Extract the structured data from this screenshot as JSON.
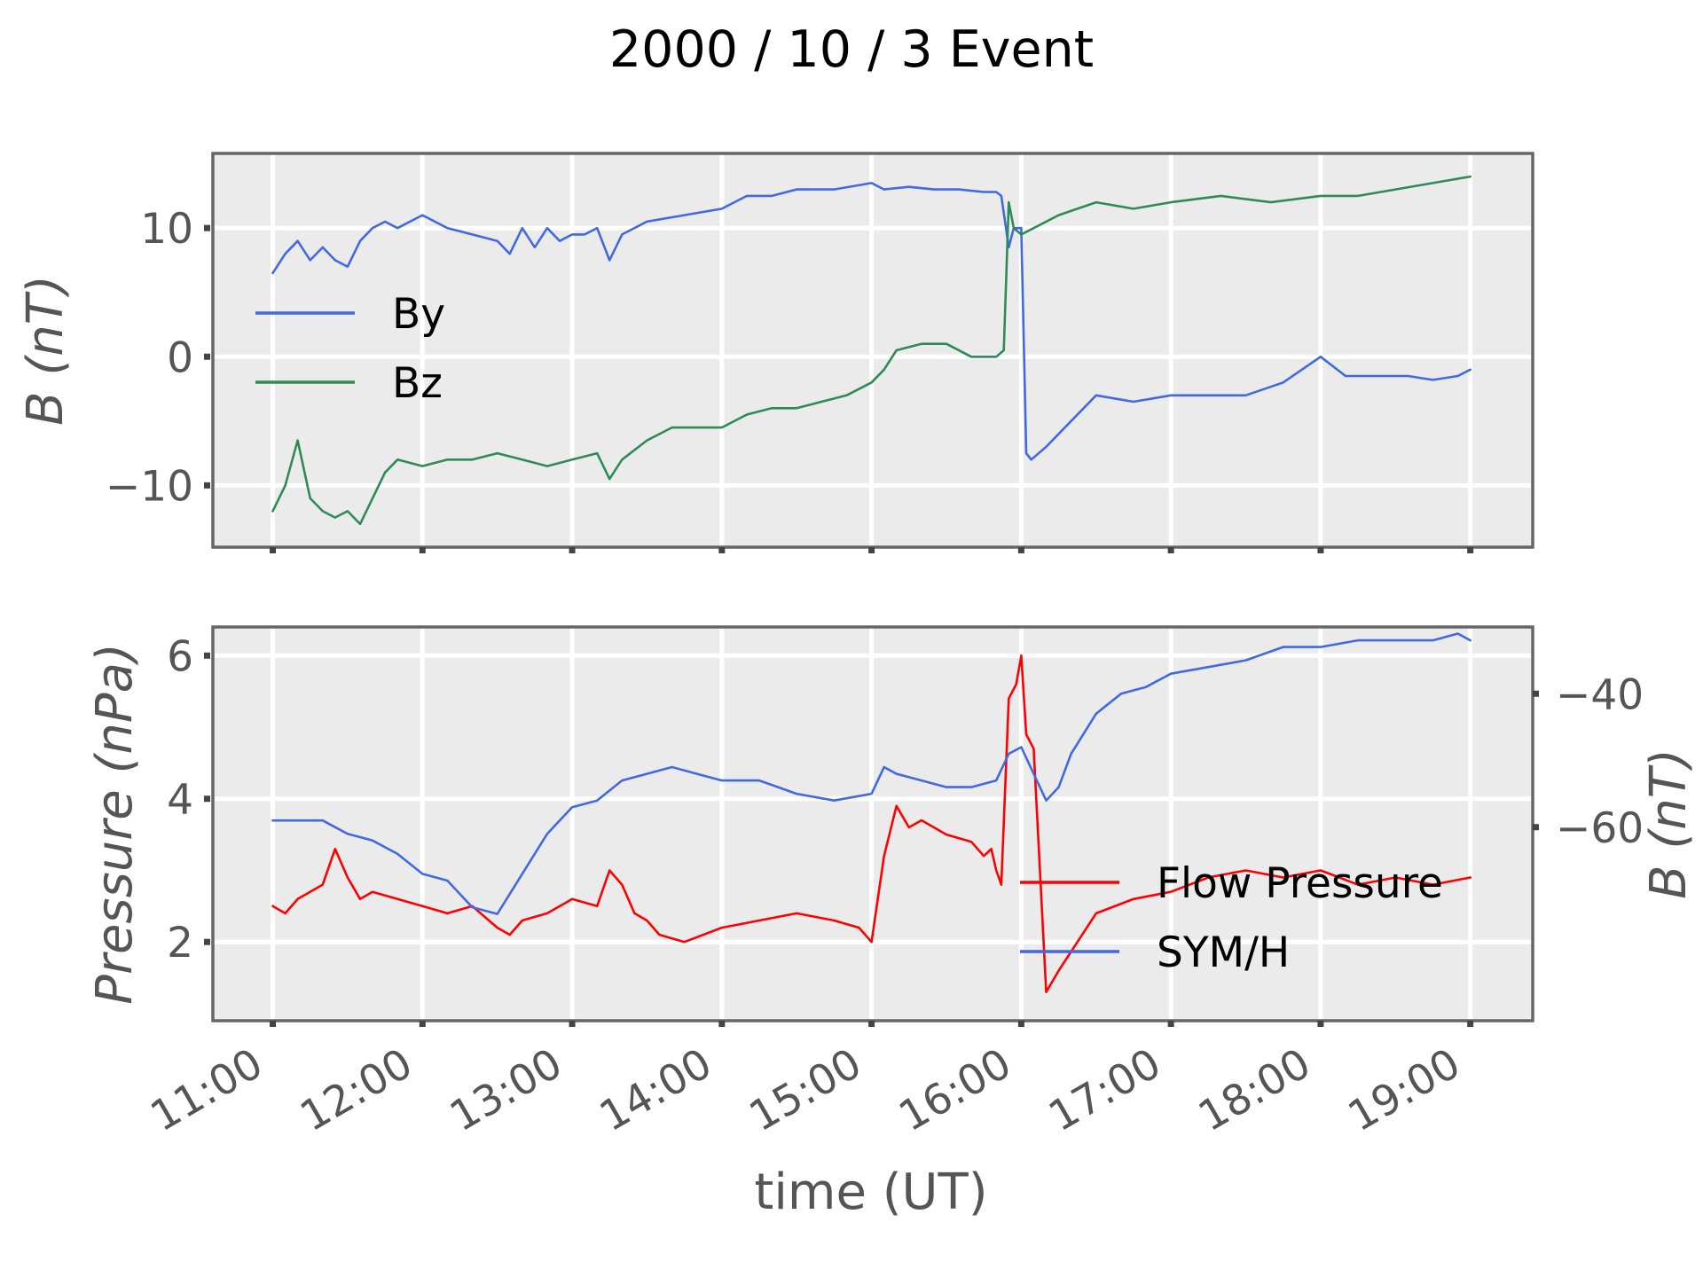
{
  "figure_title": "2000 / 10 / 3 Event",
  "colors": {
    "by": "#4169e1",
    "bz": "#2e8b57",
    "flow_pressure": "#ff0000",
    "sym_h": "#4169e1",
    "panel_background": "#ebebeb",
    "grid": "#ffffff"
  },
  "chart_data": [
    {
      "type": "line",
      "title": "",
      "xlabel": "",
      "ylabel": "B (nT)",
      "x_unit": "UT time",
      "xlim": [
        "10:36",
        "19:25"
      ],
      "ylim": [
        -14.8,
        15.8
      ],
      "yticks": [
        -10,
        0,
        10
      ],
      "ytick_labels": [
        "−10",
        "0",
        "10"
      ],
      "xticks": [
        "11:00",
        "12:00",
        "13:00",
        "14:00",
        "15:00",
        "16:00",
        "17:00",
        "18:00",
        "19:00"
      ],
      "grid": true,
      "legend": "left",
      "series": [
        {
          "name": "By",
          "color": "#4169e1",
          "x": [
            "11:00",
            "11:05",
            "11:10",
            "11:15",
            "11:20",
            "11:25",
            "11:30",
            "11:35",
            "11:40",
            "11:45",
            "11:50",
            "11:55",
            "12:00",
            "12:10",
            "12:20",
            "12:30",
            "12:35",
            "12:40",
            "12:45",
            "12:50",
            "12:55",
            "13:00",
            "13:05",
            "13:10",
            "13:15",
            "13:20",
            "13:30",
            "13:45",
            "14:00",
            "14:10",
            "14:20",
            "14:30",
            "14:45",
            "15:00",
            "15:05",
            "15:15",
            "15:25",
            "15:35",
            "15:45",
            "15:50",
            "15:52",
            "15:55",
            "15:57",
            "16:00",
            "16:02",
            "16:04",
            "16:10",
            "16:20",
            "16:30",
            "16:45",
            "17:00",
            "17:15",
            "17:30",
            "17:45",
            "18:00",
            "18:10",
            "18:20",
            "18:35",
            "18:45",
            "18:55",
            "19:00"
          ],
          "y": [
            6.5,
            8,
            9,
            7.5,
            8.5,
            7.5,
            7,
            9,
            10,
            10.5,
            10,
            10.5,
            11,
            10,
            9.5,
            9,
            8,
            10,
            8.5,
            10,
            9,
            9.5,
            9.5,
            10,
            7.5,
            9.5,
            10.5,
            11,
            11.5,
            12.5,
            12.5,
            13,
            13,
            13.5,
            13,
            13.2,
            13,
            13,
            12.8,
            12.8,
            12.5,
            8.5,
            10,
            10,
            -7.5,
            -8,
            -7,
            -5,
            -3,
            -3.5,
            -3,
            -3,
            -3,
            -2,
            0,
            -1.5,
            -1.5,
            -1.5,
            -1.8,
            -1.5,
            -1
          ]
        },
        {
          "name": "Bz",
          "color": "#2e8b57",
          "x": [
            "11:00",
            "11:05",
            "11:10",
            "11:15",
            "11:20",
            "11:25",
            "11:30",
            "11:35",
            "11:40",
            "11:45",
            "11:50",
            "12:00",
            "12:10",
            "12:20",
            "12:30",
            "12:40",
            "12:50",
            "13:00",
            "13:10",
            "13:15",
            "13:20",
            "13:30",
            "13:40",
            "14:00",
            "14:10",
            "14:20",
            "14:30",
            "14:40",
            "14:50",
            "15:00",
            "15:05",
            "15:10",
            "15:20",
            "15:30",
            "15:40",
            "15:50",
            "15:53",
            "15:55",
            "15:57",
            "16:00",
            "16:05",
            "16:15",
            "16:30",
            "16:45",
            "17:00",
            "17:20",
            "17:40",
            "18:00",
            "18:15",
            "18:30",
            "18:45",
            "19:00"
          ],
          "y": [
            -12,
            -10,
            -6.5,
            -11,
            -12,
            -12.5,
            -12,
            -13,
            -11,
            -9,
            -8,
            -8.5,
            -8,
            -8,
            -7.5,
            -8,
            -8.5,
            -8,
            -7.5,
            -9.5,
            -8,
            -6.5,
            -5.5,
            -5.5,
            -4.5,
            -4,
            -4,
            -3.5,
            -3,
            -2,
            -1,
            0.5,
            1,
            1,
            0,
            0,
            0.5,
            12,
            10,
            9.5,
            10,
            11,
            12,
            11.5,
            12,
            12.5,
            12,
            12.5,
            12.5,
            13,
            13.5,
            14
          ]
        }
      ]
    },
    {
      "type": "line",
      "title": "",
      "xlabel": "time (UT)",
      "ylabel": "Pressure (nPa)",
      "x_unit": "UT time",
      "xlim": [
        "10:36",
        "19:25"
      ],
      "ylim": [
        0.9,
        6.4
      ],
      "yticks": [
        2,
        4,
        6
      ],
      "ytick_labels": [
        "2",
        "4",
        "6"
      ],
      "secondary_y": {
        "label": "B (nT)",
        "ylim": [
          -89,
          -30
        ],
        "yticks": [
          -60,
          -40
        ],
        "ytick_labels": [
          "−60",
          "−40"
        ]
      },
      "xticks": [
        "11:00",
        "12:00",
        "13:00",
        "14:00",
        "15:00",
        "16:00",
        "17:00",
        "18:00",
        "19:00"
      ],
      "xtick_labels": [
        "11:00",
        "12:00",
        "13:00",
        "14:00",
        "15:00",
        "16:00",
        "17:00",
        "18:00",
        "19:00"
      ],
      "grid": true,
      "legend": "center-right",
      "series": [
        {
          "name": "Flow Pressure",
          "color": "#ff0000",
          "axis": "left",
          "x": [
            "11:00",
            "11:05",
            "11:10",
            "11:20",
            "11:25",
            "11:30",
            "11:35",
            "11:40",
            "11:50",
            "12:00",
            "12:10",
            "12:20",
            "12:30",
            "12:35",
            "12:40",
            "12:50",
            "13:00",
            "13:10",
            "13:15",
            "13:20",
            "13:25",
            "13:30",
            "13:35",
            "13:45",
            "14:00",
            "14:15",
            "14:30",
            "14:45",
            "14:55",
            "15:00",
            "15:05",
            "15:10",
            "15:15",
            "15:20",
            "15:30",
            "15:40",
            "15:45",
            "15:48",
            "15:50",
            "15:52",
            "15:55",
            "15:58",
            "16:00",
            "16:02",
            "16:05",
            "16:10",
            "16:15",
            "16:30",
            "16:45",
            "17:00",
            "17:15",
            "17:30",
            "17:45",
            "18:00",
            "18:15",
            "18:30",
            "18:45",
            "19:00"
          ],
          "y": [
            2.5,
            2.4,
            2.6,
            2.8,
            3.3,
            2.9,
            2.6,
            2.7,
            2.6,
            2.5,
            2.4,
            2.5,
            2.2,
            2.1,
            2.3,
            2.4,
            2.6,
            2.5,
            3.0,
            2.8,
            2.4,
            2.3,
            2.1,
            2.0,
            2.2,
            2.3,
            2.4,
            2.3,
            2.2,
            2.0,
            3.2,
            3.9,
            3.6,
            3.7,
            3.5,
            3.4,
            3.2,
            3.3,
            3.0,
            2.8,
            5.4,
            5.6,
            6.0,
            4.9,
            4.7,
            1.3,
            1.6,
            2.4,
            2.6,
            2.7,
            2.9,
            3.0,
            2.9,
            3.0,
            2.8,
            2.9,
            2.8,
            2.9
          ]
        },
        {
          "name": "SYM/H",
          "color": "#4169e1",
          "axis": "right",
          "x": [
            "11:00",
            "11:10",
            "11:20",
            "11:30",
            "11:40",
            "11:50",
            "12:00",
            "12:10",
            "12:20",
            "12:30",
            "12:40",
            "12:50",
            "13:00",
            "13:10",
            "13:20",
            "13:30",
            "13:40",
            "13:50",
            "14:00",
            "14:15",
            "14:30",
            "14:45",
            "15:00",
            "15:05",
            "15:10",
            "15:20",
            "15:30",
            "15:40",
            "15:50",
            "15:55",
            "16:00",
            "16:05",
            "16:10",
            "16:15",
            "16:20",
            "16:30",
            "16:40",
            "16:50",
            "17:00",
            "17:15",
            "17:30",
            "17:45",
            "18:00",
            "18:15",
            "18:30",
            "18:45",
            "18:55",
            "19:00"
          ],
          "y": [
            -59,
            -59,
            -59,
            -61,
            -62,
            -64,
            -67,
            -68,
            -72,
            -73,
            -67,
            -61,
            -57,
            -56,
            -53,
            -52,
            -51,
            -52,
            -53,
            -53,
            -55,
            -56,
            -55,
            -51,
            -52,
            -53,
            -54,
            -54,
            -53,
            -49,
            -48,
            -52,
            -56,
            -54,
            -49,
            -43,
            -40,
            -39,
            -37,
            -36,
            -35,
            -33,
            -33,
            -32,
            -32,
            -32,
            -31,
            -32
          ]
        }
      ]
    }
  ]
}
